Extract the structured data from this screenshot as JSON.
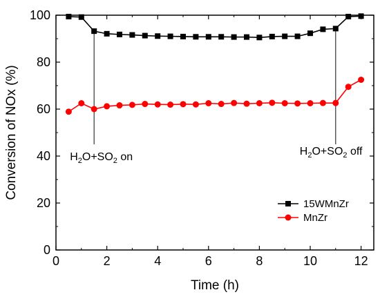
{
  "chart_data": {
    "type": "line",
    "xlabel": "Time (h)",
    "ylabel": "Conversion of NOx (%)",
    "xlim": [
      0,
      12.5
    ],
    "ylim": [
      0,
      100
    ],
    "xticks": [
      0,
      2,
      4,
      6,
      8,
      10,
      12
    ],
    "yticks": [
      0,
      20,
      40,
      60,
      80,
      100
    ],
    "grid": false,
    "legend_position": "bottom-right",
    "series": [
      {
        "name": "15WMnZr",
        "color": "#000000",
        "marker": "square",
        "x": [
          0.5,
          1,
          1.5,
          2,
          2.5,
          3,
          3.5,
          4,
          4.5,
          5,
          5.5,
          6,
          6.5,
          7,
          7.5,
          8,
          8.5,
          9,
          9.5,
          10,
          10.5,
          11,
          11.5,
          12
        ],
        "y": [
          99.4,
          99.2,
          93.2,
          92.1,
          91.8,
          91.6,
          91.3,
          91.1,
          91.0,
          90.9,
          90.8,
          90.8,
          90.8,
          90.7,
          90.7,
          90.5,
          90.9,
          91.0,
          91.0,
          92.3,
          94.0,
          94.3,
          99.4,
          99.6
        ]
      },
      {
        "name": "MnZr",
        "color": "#ff0000",
        "marker": "circle",
        "x": [
          0.5,
          1,
          1.5,
          2,
          2.5,
          3,
          3.5,
          4,
          4.5,
          5,
          5.5,
          6,
          6.5,
          7,
          7.5,
          8,
          8.5,
          9,
          9.5,
          10,
          10.5,
          11,
          11.5,
          12
        ],
        "y": [
          58.9,
          62.5,
          60.0,
          61.2,
          61.6,
          61.8,
          62.2,
          62.0,
          61.9,
          62.1,
          62.0,
          62.5,
          62.2,
          62.6,
          62.3,
          62.5,
          62.7,
          62.5,
          62.4,
          62.5,
          62.6,
          62.6,
          69.5,
          72.5
        ]
      }
    ],
    "annotations": [
      {
        "id": "on",
        "base": "H",
        "sub1": "2",
        "mid": "O+SO",
        "sub2": "2",
        "tail": "  on",
        "x": 1.5
      },
      {
        "id": "off",
        "base": "H",
        "sub1": "2",
        "mid": "O+SO",
        "sub2": "2",
        "tail": " off",
        "x": 11
      }
    ]
  }
}
